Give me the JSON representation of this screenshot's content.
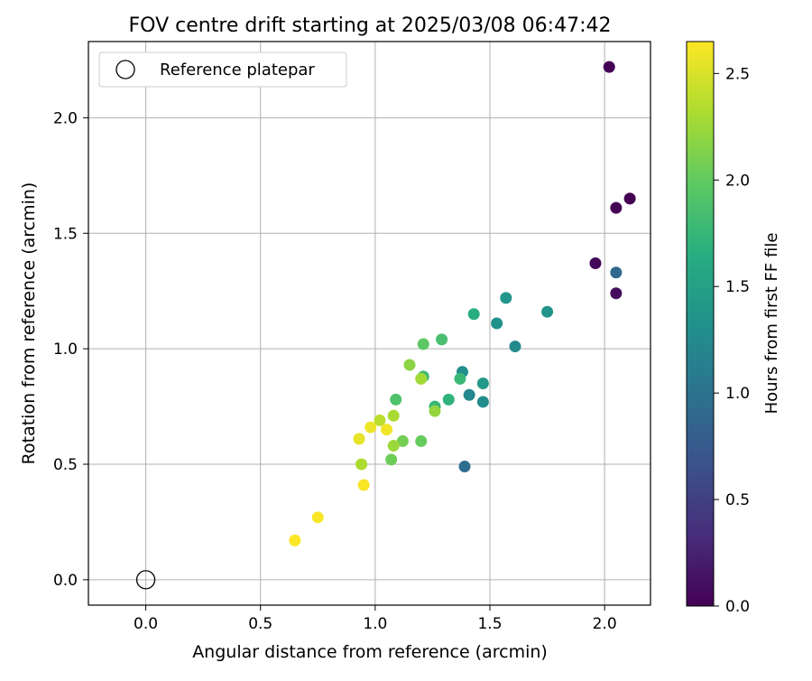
{
  "chart_data": {
    "type": "scatter",
    "title": "FOV centre drift starting at 2025/03/08 06:47:42",
    "xlabel": "Angular distance from reference (arcmin)",
    "ylabel": "Rotation from reference (arcmin)",
    "xlim": [
      -0.25,
      2.2
    ],
    "ylim": [
      -0.11,
      2.33
    ],
    "xticks": [
      0.0,
      0.5,
      1.0,
      1.5,
      2.0
    ],
    "yticks": [
      0.0,
      0.5,
      1.0,
      1.5,
      2.0
    ],
    "grid": true,
    "legend": {
      "position": "top-left",
      "entries": [
        "Reference platepar"
      ]
    },
    "reference_point": {
      "name": "Reference platepar",
      "x": 0.0,
      "y": 0.0
    },
    "colorbar": {
      "label": "Hours from first FF file",
      "colormap": "viridis",
      "range": [
        0.0,
        2.65
      ],
      "ticks": [
        0.0,
        0.5,
        1.0,
        1.5,
        2.0,
        2.5
      ]
    },
    "series": [
      {
        "color_by": "hours",
        "points": [
          {
            "x": 2.02,
            "y": 2.22,
            "c": 0.0
          },
          {
            "x": 2.11,
            "y": 1.65,
            "c": 0.0
          },
          {
            "x": 2.05,
            "y": 1.61,
            "c": 0.02
          },
          {
            "x": 1.96,
            "y": 1.37,
            "c": 0.05
          },
          {
            "x": 2.05,
            "y": 1.24,
            "c": 0.08
          },
          {
            "x": 2.05,
            "y": 1.33,
            "c": 0.9
          },
          {
            "x": 1.39,
            "y": 0.49,
            "c": 0.95
          },
          {
            "x": 1.61,
            "y": 1.01,
            "c": 1.25
          },
          {
            "x": 1.41,
            "y": 0.8,
            "c": 1.22
          },
          {
            "x": 1.47,
            "y": 0.77,
            "c": 1.28
          },
          {
            "x": 1.38,
            "y": 0.9,
            "c": 1.3
          },
          {
            "x": 1.53,
            "y": 1.11,
            "c": 1.32
          },
          {
            "x": 1.75,
            "y": 1.16,
            "c": 1.35
          },
          {
            "x": 1.57,
            "y": 1.22,
            "c": 1.38
          },
          {
            "x": 1.47,
            "y": 0.85,
            "c": 1.42
          },
          {
            "x": 1.43,
            "y": 1.15,
            "c": 1.65
          },
          {
            "x": 1.32,
            "y": 0.78,
            "c": 1.7
          },
          {
            "x": 1.26,
            "y": 0.75,
            "c": 1.75
          },
          {
            "x": 1.37,
            "y": 0.87,
            "c": 1.78
          },
          {
            "x": 1.29,
            "y": 1.04,
            "c": 1.85
          },
          {
            "x": 1.21,
            "y": 0.88,
            "c": 1.8
          },
          {
            "x": 1.09,
            "y": 0.78,
            "c": 1.9
          },
          {
            "x": 1.21,
            "y": 1.02,
            "c": 1.98
          },
          {
            "x": 1.2,
            "y": 0.6,
            "c": 2.02
          },
          {
            "x": 1.07,
            "y": 0.52,
            "c": 2.05
          },
          {
            "x": 1.12,
            "y": 0.6,
            "c": 2.08
          },
          {
            "x": 1.15,
            "y": 0.93,
            "c": 2.18
          },
          {
            "x": 1.26,
            "y": 0.73,
            "c": 2.22
          },
          {
            "x": 1.08,
            "y": 0.58,
            "c": 2.25
          },
          {
            "x": 1.2,
            "y": 0.87,
            "c": 2.28
          },
          {
            "x": 1.08,
            "y": 0.71,
            "c": 2.3
          },
          {
            "x": 0.94,
            "y": 0.5,
            "c": 2.32
          },
          {
            "x": 1.02,
            "y": 0.69,
            "c": 2.38
          },
          {
            "x": 0.93,
            "y": 0.61,
            "c": 2.55
          },
          {
            "x": 0.98,
            "y": 0.66,
            "c": 2.58
          },
          {
            "x": 1.05,
            "y": 0.65,
            "c": 2.6
          },
          {
            "x": 0.95,
            "y": 0.41,
            "c": 2.62
          },
          {
            "x": 0.75,
            "y": 0.27,
            "c": 2.63
          },
          {
            "x": 0.65,
            "y": 0.17,
            "c": 2.64
          }
        ]
      }
    ]
  }
}
